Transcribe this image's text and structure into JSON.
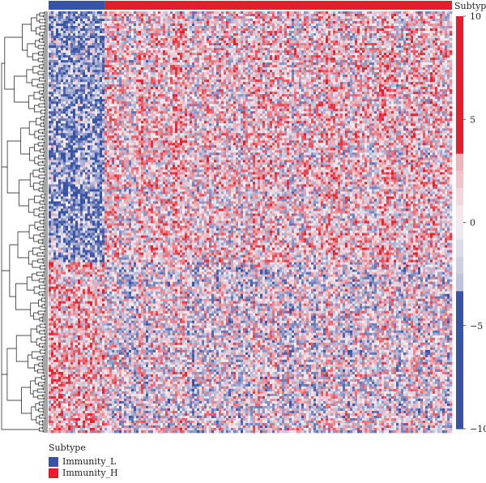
{
  "chart_data": {
    "type": "heatmap",
    "annotation_label": "Subtype",
    "groups": [
      {
        "name": "Immunity_L",
        "color": "#3953a4",
        "fraction": 0.14
      },
      {
        "name": "Immunity_H",
        "color": "#e41e2b",
        "fraction": 0.86
      }
    ],
    "colorbar": {
      "ticks": [
        10,
        5,
        0,
        -5,
        -10
      ],
      "range": [
        -10,
        10
      ],
      "low_color": "#3953a4",
      "mid_color": "#f5f0f4",
      "high_color": "#e41e2b"
    },
    "row_dendrogram": true,
    "legend": {
      "title": "Subtype",
      "items": [
        {
          "label": "Immunity_L",
          "color": "#3953a4"
        },
        {
          "label": "Immunity_H",
          "color": "#e41e2b"
        }
      ]
    }
  }
}
